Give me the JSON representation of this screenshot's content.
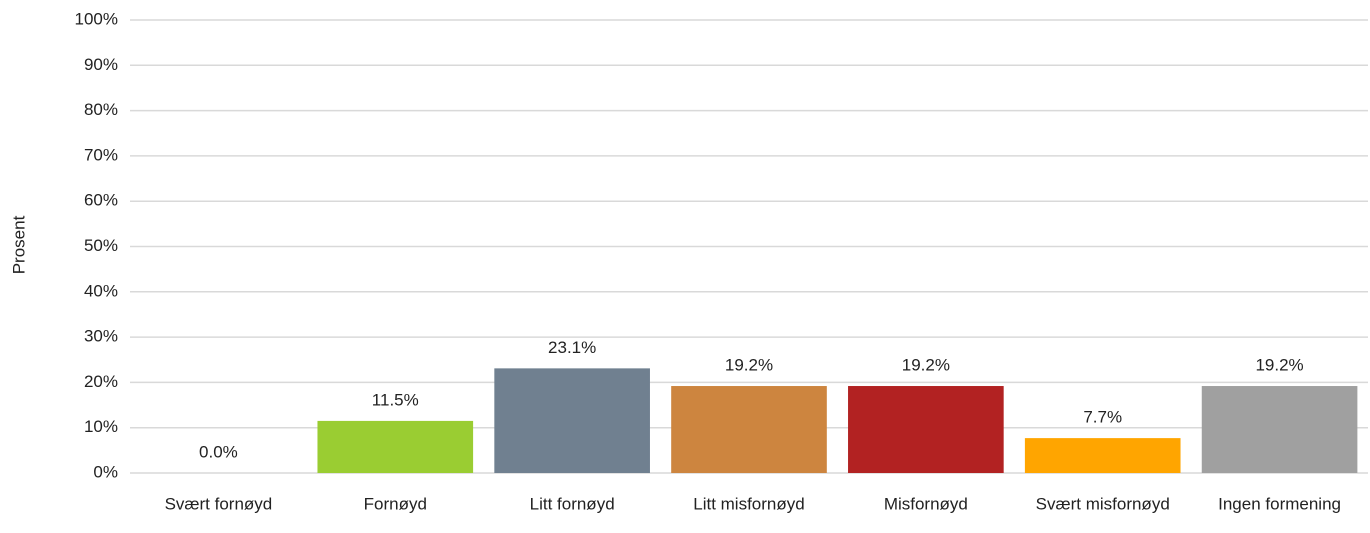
{
  "chart_data": {
    "type": "bar",
    "y_label": "Prosent",
    "categories": [
      "Svært fornøyd",
      "Fornøyd",
      "Litt fornøyd",
      "Litt misfornøyd",
      "Misfornøyd",
      "Svært misfornøyd",
      "Ingen formening"
    ],
    "values": [
      0,
      11.5,
      23.1,
      19.2,
      19.2,
      7.7,
      19.2
    ],
    "value_labels": [
      "0.0%",
      "11.5%",
      "23.1%",
      "19.2%",
      "19.2%",
      "7.7%",
      "19.2%"
    ],
    "colors": [
      "#4472c4",
      "#9acd32",
      "#708090",
      "#cd853f",
      "#b22222",
      "#ffa500",
      "#a0a0a0"
    ],
    "ylim": [
      0,
      100
    ],
    "yticks": [
      {
        "value": 0,
        "label": "0%"
      },
      {
        "value": 10,
        "label": "10%"
      },
      {
        "value": 20,
        "label": "20%"
      },
      {
        "value": 30,
        "label": "30%"
      },
      {
        "value": 40,
        "label": "40%"
      },
      {
        "value": 50,
        "label": "50%"
      },
      {
        "value": 60,
        "label": "60%"
      },
      {
        "value": 70,
        "label": "70%"
      },
      {
        "value": 80,
        "label": "80%"
      },
      {
        "value": 90,
        "label": "90%"
      },
      {
        "value": 100,
        "label": "100%"
      }
    ],
    "grid": true
  }
}
